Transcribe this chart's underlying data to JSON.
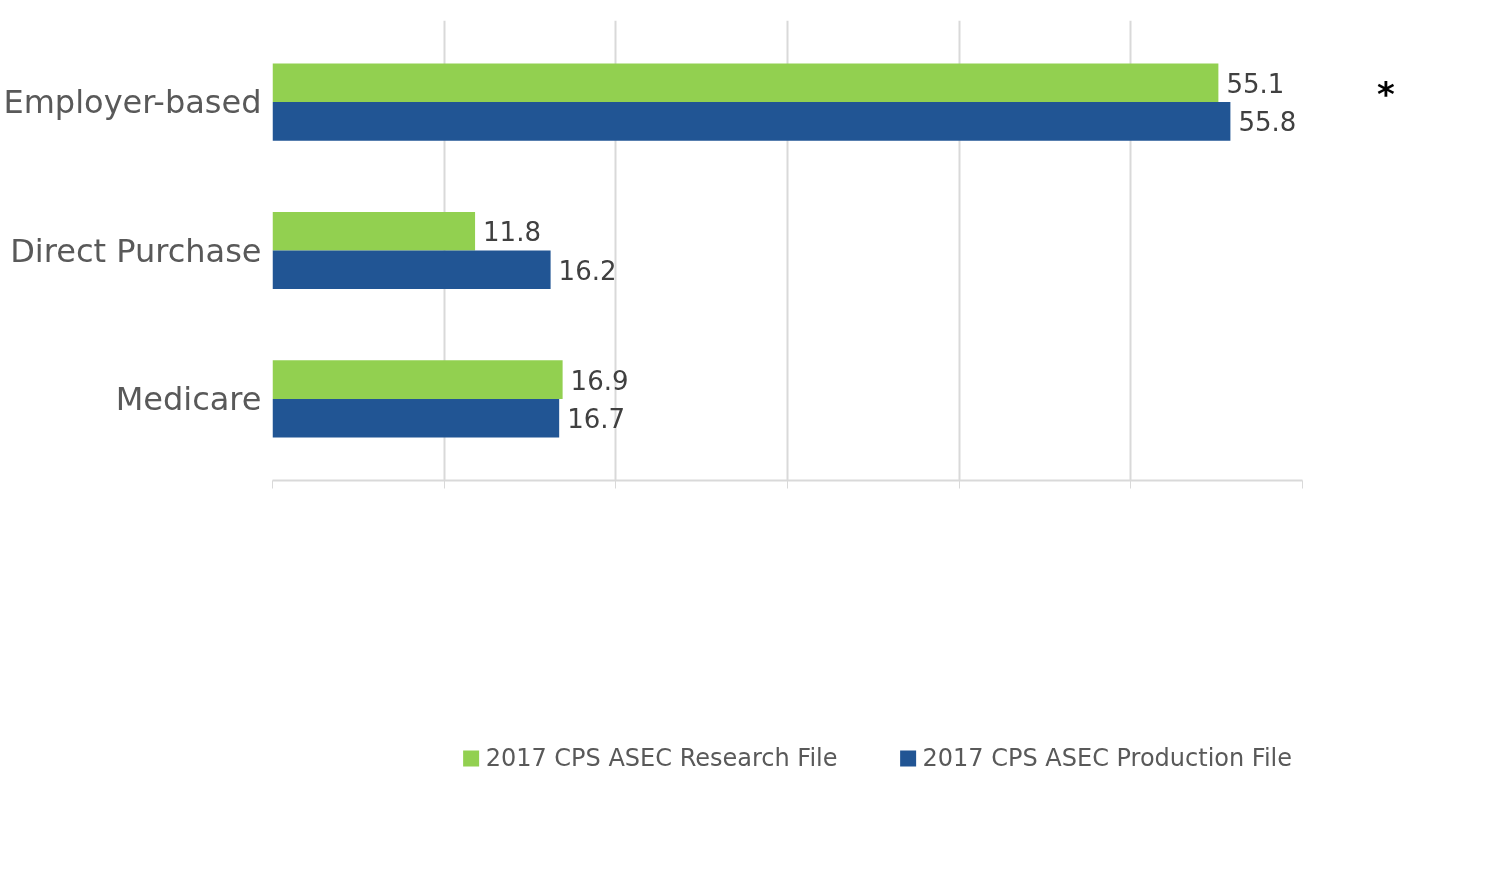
{
  "chart_data": {
    "type": "bar",
    "orientation": "horizontal",
    "categories": [
      "Employer-based",
      "Direct Purchase",
      "Medicare"
    ],
    "series": [
      {
        "name": "2017 CPS ASEC Research File",
        "color": "#92d050",
        "values": [
          55.1,
          11.8,
          16.9
        ]
      },
      {
        "name": "2017 CPS ASEC Production File",
        "color": "#215594",
        "values": [
          55.8,
          16.2,
          16.7
        ]
      }
    ],
    "xlim": [
      0,
      60
    ],
    "xticks": [
      {
        "value": 0,
        "label": null
      },
      {
        "value": 10,
        "label": null
      },
      {
        "value": 20,
        "label": null
      },
      {
        "value": 30,
        "label": null
      },
      {
        "value": 40,
        "label": null
      },
      {
        "value": 50,
        "label": null
      },
      {
        "value": 60,
        "label": null
      }
    ],
    "tick_labels": "y",
    "grid": "x",
    "legend": "bottom",
    "data_labels": true,
    "annotations": [
      "*"
    ]
  }
}
